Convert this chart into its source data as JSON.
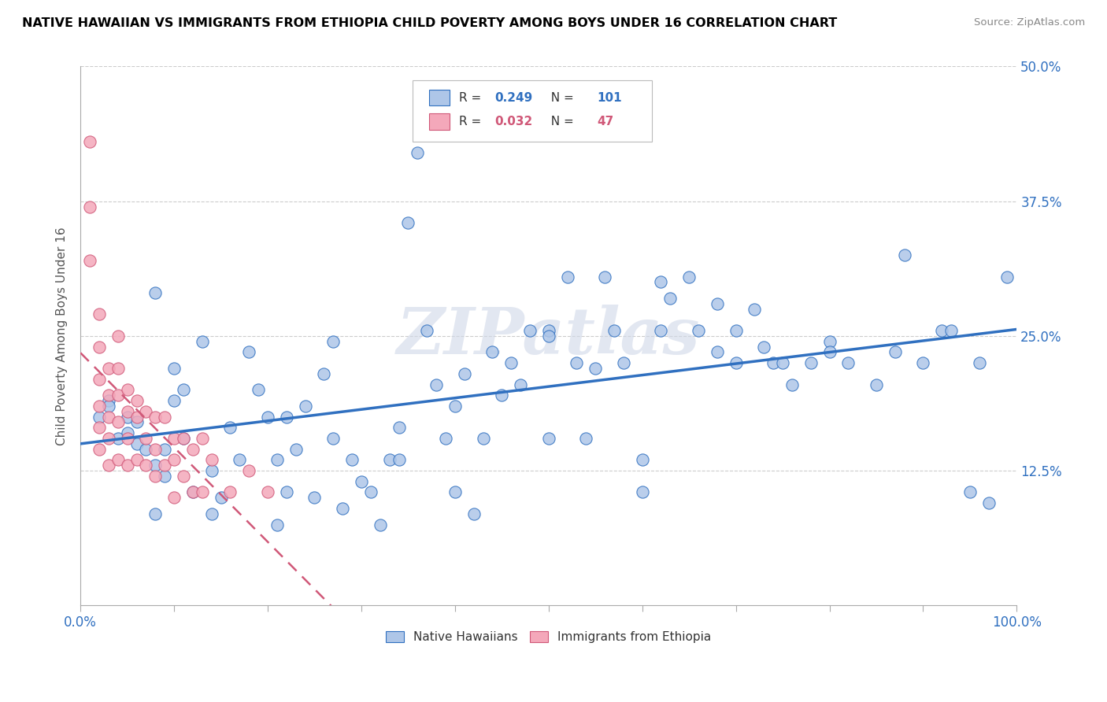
{
  "title": "NATIVE HAWAIIAN VS IMMIGRANTS FROM ETHIOPIA CHILD POVERTY AMONG BOYS UNDER 16 CORRELATION CHART",
  "source": "Source: ZipAtlas.com",
  "ylabel": "Child Poverty Among Boys Under 16",
  "xlim": [
    0.0,
    1.0
  ],
  "ylim": [
    0.0,
    0.5
  ],
  "yticks": [
    0.0,
    0.125,
    0.25,
    0.375,
    0.5
  ],
  "ytick_labels": [
    "0.0%",
    "12.5%",
    "25.0%",
    "37.5%",
    "50.0%"
  ],
  "xtick_labels_show": [
    "0.0%",
    "100.0%"
  ],
  "blue_color": "#aec6e8",
  "pink_color": "#f4a8ba",
  "blue_line_color": "#3070c0",
  "pink_line_color": "#d05878",
  "legend_blue_label": "Native Hawaiians",
  "legend_pink_label": "Immigrants from Ethiopia",
  "R_blue": 0.249,
  "N_blue": 101,
  "R_pink": 0.032,
  "N_pink": 47,
  "watermark": "ZIPatlas",
  "blue_scatter_x": [
    0.02,
    0.03,
    0.04,
    0.05,
    0.05,
    0.06,
    0.06,
    0.07,
    0.08,
    0.08,
    0.09,
    0.09,
    0.1,
    0.1,
    0.11,
    0.11,
    0.12,
    0.13,
    0.14,
    0.15,
    0.16,
    0.17,
    0.18,
    0.19,
    0.2,
    0.21,
    0.22,
    0.22,
    0.23,
    0.24,
    0.25,
    0.26,
    0.27,
    0.28,
    0.29,
    0.3,
    0.31,
    0.32,
    0.33,
    0.34,
    0.35,
    0.36,
    0.37,
    0.38,
    0.39,
    0.4,
    0.41,
    0.42,
    0.43,
    0.44,
    0.45,
    0.46,
    0.47,
    0.48,
    0.5,
    0.52,
    0.53,
    0.54,
    0.56,
    0.57,
    0.58,
    0.6,
    0.62,
    0.63,
    0.65,
    0.66,
    0.68,
    0.7,
    0.72,
    0.74,
    0.76,
    0.78,
    0.8,
    0.82,
    0.85,
    0.87,
    0.9,
    0.92,
    0.95,
    0.97,
    0.99,
    0.03,
    0.08,
    0.14,
    0.21,
    0.27,
    0.34,
    0.4,
    0.5,
    0.6,
    0.7,
    0.75,
    0.8,
    0.88,
    0.93,
    0.96,
    0.5,
    0.55,
    0.62,
    0.68,
    0.73
  ],
  "blue_scatter_y": [
    0.175,
    0.19,
    0.155,
    0.16,
    0.175,
    0.15,
    0.17,
    0.145,
    0.29,
    0.13,
    0.12,
    0.145,
    0.19,
    0.22,
    0.2,
    0.155,
    0.105,
    0.245,
    0.085,
    0.1,
    0.165,
    0.135,
    0.235,
    0.2,
    0.175,
    0.135,
    0.105,
    0.175,
    0.145,
    0.185,
    0.1,
    0.215,
    0.245,
    0.09,
    0.135,
    0.115,
    0.105,
    0.075,
    0.135,
    0.165,
    0.355,
    0.42,
    0.255,
    0.205,
    0.155,
    0.185,
    0.215,
    0.085,
    0.155,
    0.235,
    0.195,
    0.225,
    0.205,
    0.255,
    0.255,
    0.305,
    0.225,
    0.155,
    0.305,
    0.255,
    0.225,
    0.105,
    0.255,
    0.285,
    0.305,
    0.255,
    0.235,
    0.255,
    0.275,
    0.225,
    0.205,
    0.225,
    0.245,
    0.225,
    0.205,
    0.235,
    0.225,
    0.255,
    0.105,
    0.095,
    0.305,
    0.185,
    0.085,
    0.125,
    0.075,
    0.155,
    0.135,
    0.105,
    0.155,
    0.135,
    0.225,
    0.225,
    0.235,
    0.325,
    0.255,
    0.225,
    0.25,
    0.22,
    0.3,
    0.28,
    0.24
  ],
  "pink_scatter_x": [
    0.01,
    0.01,
    0.01,
    0.02,
    0.02,
    0.02,
    0.02,
    0.02,
    0.02,
    0.03,
    0.03,
    0.03,
    0.03,
    0.03,
    0.04,
    0.04,
    0.04,
    0.04,
    0.04,
    0.05,
    0.05,
    0.05,
    0.05,
    0.06,
    0.06,
    0.06,
    0.07,
    0.07,
    0.07,
    0.08,
    0.08,
    0.08,
    0.09,
    0.09,
    0.1,
    0.1,
    0.1,
    0.11,
    0.11,
    0.12,
    0.12,
    0.13,
    0.13,
    0.14,
    0.16,
    0.18,
    0.2
  ],
  "pink_scatter_y": [
    0.43,
    0.37,
    0.32,
    0.27,
    0.24,
    0.21,
    0.185,
    0.165,
    0.145,
    0.22,
    0.195,
    0.175,
    0.155,
    0.13,
    0.25,
    0.22,
    0.195,
    0.17,
    0.135,
    0.2,
    0.18,
    0.155,
    0.13,
    0.19,
    0.175,
    0.135,
    0.18,
    0.155,
    0.13,
    0.175,
    0.145,
    0.12,
    0.175,
    0.13,
    0.155,
    0.135,
    0.1,
    0.155,
    0.12,
    0.145,
    0.105,
    0.155,
    0.105,
    0.135,
    0.105,
    0.125,
    0.105
  ]
}
